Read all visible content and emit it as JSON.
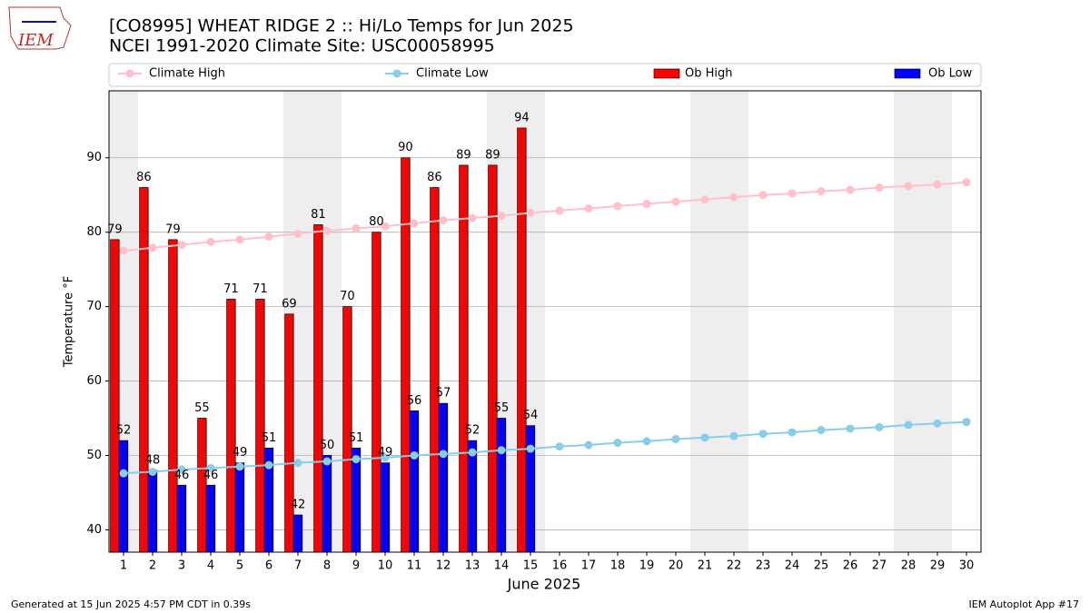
{
  "logo": "IEM",
  "footer_left": "Generated at 15 Jun 2025 4:57 PM CDT in 0.39s",
  "footer_right": "IEM Autoplot App #17",
  "chart_data": {
    "type": "bar",
    "title": "[CO8995] WHEAT RIDGE 2 :: Hi/Lo Temps for Jun 2025",
    "subtitle": "NCEI 1991-2020 Climate Site: USC00058995",
    "x_label": "June 2025",
    "y_label": "Temperature °F",
    "x": [
      1,
      2,
      3,
      4,
      5,
      6,
      7,
      8,
      9,
      10,
      11,
      12,
      13,
      14,
      15,
      16,
      17,
      18,
      19,
      20,
      21,
      22,
      23,
      24,
      25,
      26,
      27,
      28,
      29,
      30
    ],
    "xlim": [
      0.5,
      30.5
    ],
    "xticks": [
      1,
      2,
      3,
      4,
      5,
      6,
      7,
      8,
      9,
      10,
      11,
      12,
      13,
      14,
      15,
      16,
      17,
      18,
      19,
      20,
      21,
      22,
      23,
      24,
      25,
      26,
      27,
      28,
      29,
      30
    ],
    "ylim": [
      37,
      99
    ],
    "yticks": [
      40,
      50,
      60,
      70,
      80,
      90
    ],
    "grid": true,
    "legend": "top",
    "shaded_days": [
      1,
      7,
      8,
      14,
      15,
      21,
      22,
      28,
      29
    ],
    "shade_color": "#eeeeee",
    "series": [
      {
        "name": "Climate High",
        "type": "line",
        "color": "#ffc0cb",
        "values": [
          77.5,
          77.9,
          78.3,
          78.7,
          79.0,
          79.4,
          79.8,
          80.2,
          80.5,
          80.8,
          81.2,
          81.6,
          81.9,
          82.2,
          82.6,
          82.9,
          83.2,
          83.5,
          83.8,
          84.1,
          84.4,
          84.7,
          85.0,
          85.2,
          85.5,
          85.7,
          86.0,
          86.2,
          86.4,
          86.7
        ]
      },
      {
        "name": "Climate Low",
        "type": "line",
        "color": "#87ceeb",
        "values": [
          47.6,
          47.8,
          48.1,
          48.3,
          48.5,
          48.7,
          49.0,
          49.2,
          49.5,
          49.7,
          50.0,
          50.2,
          50.4,
          50.7,
          50.9,
          51.2,
          51.4,
          51.7,
          51.9,
          52.2,
          52.4,
          52.6,
          52.9,
          53.1,
          53.4,
          53.6,
          53.8,
          54.1,
          54.3,
          54.5
        ]
      },
      {
        "name": "Ob High",
        "type": "bar",
        "color": "#ff0000",
        "values": [
          79,
          86,
          79,
          55,
          71,
          71,
          69,
          81,
          70,
          80,
          90,
          86,
          89,
          89,
          94,
          null,
          null,
          null,
          null,
          null,
          null,
          null,
          null,
          null,
          null,
          null,
          null,
          null,
          null,
          null
        ]
      },
      {
        "name": "Ob Low",
        "type": "bar",
        "color": "#0000ff",
        "values": [
          52,
          48,
          46,
          46,
          49,
          51,
          42,
          50,
          51,
          49,
          56,
          57,
          52,
          55,
          54,
          null,
          null,
          null,
          null,
          null,
          null,
          null,
          null,
          null,
          null,
          null,
          null,
          null,
          null,
          null
        ]
      }
    ]
  }
}
